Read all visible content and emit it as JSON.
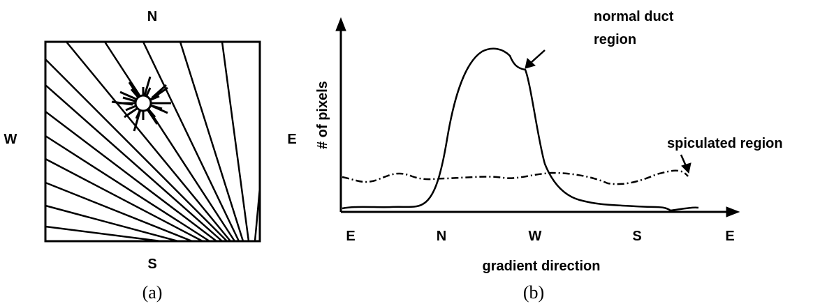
{
  "panel_a": {
    "compass": {
      "north": "N",
      "west": "W",
      "east": "E",
      "south": "S"
    },
    "caption": "(a)"
  },
  "panel_b": {
    "y_label": "# of pixels",
    "x_label": "gradient direction",
    "x_tick_labels": [
      "E",
      "N",
      "W",
      "S",
      "E"
    ],
    "annotations": {
      "normal_duct": [
        "normal duct",
        "region"
      ],
      "spiculated": "spiculated region"
    },
    "caption": "(b)"
  }
}
